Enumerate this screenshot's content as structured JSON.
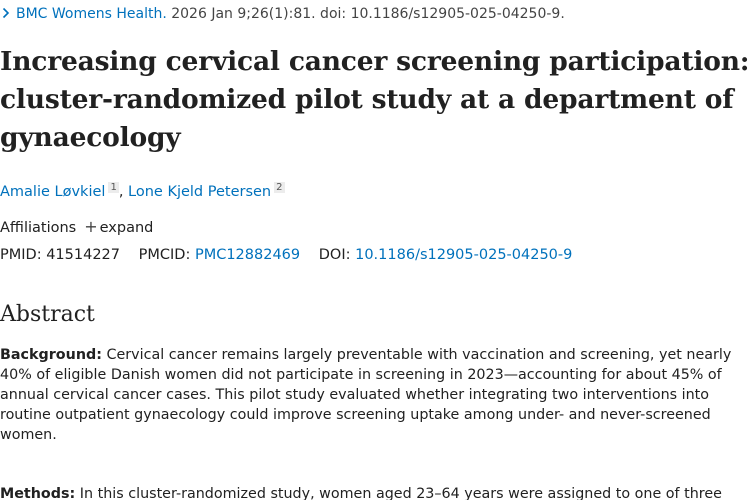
{
  "citation": {
    "journal": "BMC Womens Health.",
    "details": " 2026 Jan 9;26(1):81. doi: 10.1186/s12905-025-04250-9."
  },
  "title": {
    "lines": [
      "Increasing cervical cancer screening participation: a",
      "cluster-randomized pilot study at a department of",
      "gynaecology"
    ]
  },
  "authors": [
    {
      "name": "Amalie Løvkiel",
      "affiliation": "1"
    },
    {
      "name": "Lone Kjeld Petersen",
      "affiliation": "2"
    }
  ],
  "authors_separator": ",",
  "affiliations": {
    "label": "Affiliations",
    "expand_label": "expand"
  },
  "identifiers": {
    "pmid_label": "PMID:",
    "pmid": "41514227",
    "pmcid_label": "PMCID:",
    "pmcid": "PMC12882469",
    "doi_label": "DOI:",
    "doi": "10.1186/s12905-025-04250-9"
  },
  "abstract": {
    "heading": "Abstract",
    "background_label": "Background:",
    "background_lines": [
      " Cervical cancer remains largely preventable with vaccination and screening, yet nearly",
      "40% of eligible Danish women did not participate in screening in 2023—accounting for about 45% of",
      "annual cervical cancer cases. This pilot study evaluated whether integrating two interventions into",
      "routine outpatient gynaecology could improve screening uptake among under- and never-screened",
      "women."
    ],
    "methods_label": "Methods:",
    "methods_lines": [
      " In this cluster-randomized study, women aged 23–64 years were assigned to one of three"
    ]
  },
  "colors": {
    "link": "#0071bc",
    "text": "#212121"
  }
}
